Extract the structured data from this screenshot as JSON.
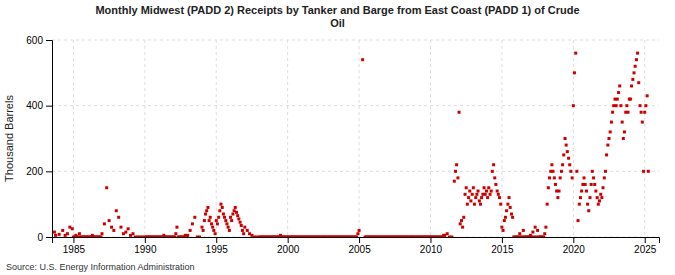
{
  "chart_data": {
    "type": "scatter",
    "title": "Monthly Midwest (PADD 2) Receipts by Tanker and Barge from East Coast (PADD 1) of Crude\nOil",
    "ylabel": "Thousand Barrels",
    "source": "Source: U.S. Energy Information Administration",
    "color": "#cc0000",
    "marker": "square",
    "grid": true,
    "xlim": [
      1983.5,
      2026.0
    ],
    "ylim": [
      0,
      600
    ],
    "xticks": [
      1985,
      1990,
      1995,
      2000,
      2005,
      2010,
      2015,
      2020,
      2025
    ],
    "yticks": [
      0,
      200,
      400,
      600
    ],
    "x": [
      1983.67,
      1983.75,
      1984.0,
      1984.25,
      1984.42,
      1984.58,
      1984.75,
      1984.92,
      1985.0,
      1985.08,
      1985.17,
      1985.25,
      1985.33,
      1985.42,
      1985.5,
      1985.58,
      1985.67,
      1985.75,
      1985.83,
      1985.92,
      1986.0,
      1986.08,
      1986.17,
      1986.25,
      1986.33,
      1986.42,
      1986.5,
      1986.58,
      1986.67,
      1986.75,
      1986.83,
      1986.92,
      1987.0,
      1987.17,
      1987.33,
      1987.5,
      1987.67,
      1987.83,
      1988.0,
      1988.17,
      1988.33,
      1988.5,
      1988.67,
      1988.83,
      1989.0,
      1989.17,
      1989.33,
      1989.5,
      1989.67,
      1989.83,
      1990.0,
      1990.08,
      1990.17,
      1990.25,
      1990.33,
      1990.42,
      1990.5,
      1990.58,
      1990.67,
      1990.75,
      1990.83,
      1990.92,
      1991.0,
      1991.08,
      1991.17,
      1991.25,
      1991.33,
      1991.42,
      1991.5,
      1991.58,
      1991.67,
      1991.75,
      1991.83,
      1991.92,
      1992.0,
      1992.08,
      1992.17,
      1992.25,
      1992.33,
      1992.42,
      1992.5,
      1992.58,
      1992.67,
      1992.75,
      1992.83,
      1992.92,
      1993.0,
      1993.17,
      1993.33,
      1993.5,
      1993.67,
      1993.83,
      1994.0,
      1994.08,
      1994.17,
      1994.25,
      1994.33,
      1994.42,
      1994.5,
      1994.58,
      1994.67,
      1994.75,
      1994.83,
      1994.92,
      1995.0,
      1995.08,
      1995.17,
      1995.25,
      1995.33,
      1995.42,
      1995.5,
      1995.58,
      1995.67,
      1995.75,
      1995.83,
      1995.92,
      1996.0,
      1996.08,
      1996.17,
      1996.25,
      1996.33,
      1996.42,
      1996.5,
      1996.58,
      1996.67,
      1996.75,
      1996.83,
      1996.92,
      1997.0,
      1997.17,
      1997.33,
      1997.5,
      1997.67,
      1997.83,
      1998.0,
      1998.08,
      1998.17,
      1998.25,
      1998.33,
      1998.42,
      1998.5,
      1998.58,
      1998.67,
      1998.75,
      1998.83,
      1998.92,
      1999.0,
      1999.08,
      1999.17,
      1999.25,
      1999.33,
      1999.42,
      1999.5,
      1999.58,
      1999.67,
      1999.75,
      1999.83,
      1999.92,
      2000.0,
      2000.08,
      2000.17,
      2000.25,
      2000.33,
      2000.42,
      2000.5,
      2000.58,
      2000.67,
      2000.75,
      2000.83,
      2000.92,
      2001.0,
      2001.08,
      2001.17,
      2001.25,
      2001.33,
      2001.42,
      2001.5,
      2001.58,
      2001.67,
      2001.75,
      2001.83,
      2001.92,
      2002.0,
      2002.08,
      2002.17,
      2002.25,
      2002.33,
      2002.42,
      2002.5,
      2002.58,
      2002.67,
      2002.75,
      2002.83,
      2002.92,
      2003.0,
      2003.08,
      2003.17,
      2003.25,
      2003.33,
      2003.42,
      2003.5,
      2003.58,
      2003.67,
      2003.75,
      2003.83,
      2003.92,
      2004.0,
      2004.08,
      2004.17,
      2004.25,
      2004.33,
      2004.42,
      2004.5,
      2004.58,
      2004.67,
      2004.75,
      2004.83,
      2004.92,
      2005.0,
      2005.25,
      2005.42,
      2005.5,
      2005.58,
      2005.67,
      2005.75,
      2005.83,
      2005.92,
      2006.0,
      2006.08,
      2006.17,
      2006.25,
      2006.33,
      2006.42,
      2006.5,
      2006.58,
      2006.67,
      2006.75,
      2006.83,
      2006.92,
      2007.0,
      2007.08,
      2007.17,
      2007.25,
      2007.33,
      2007.42,
      2007.5,
      2007.58,
      2007.67,
      2007.75,
      2007.83,
      2007.92,
      2008.0,
      2008.08,
      2008.17,
      2008.25,
      2008.33,
      2008.42,
      2008.5,
      2008.58,
      2008.67,
      2008.75,
      2008.83,
      2008.92,
      2009.0,
      2009.08,
      2009.17,
      2009.25,
      2009.33,
      2009.42,
      2009.5,
      2009.58,
      2009.67,
      2009.75,
      2009.83,
      2009.92,
      2010.0,
      2010.08,
      2010.17,
      2010.25,
      2010.33,
      2010.42,
      2010.5,
      2010.58,
      2010.67,
      2010.75,
      2010.83,
      2010.92,
      2011.0,
      2011.17,
      2011.33,
      2011.5,
      2011.67,
      2011.75,
      2011.83,
      2011.92,
      2012.0,
      2012.08,
      2012.17,
      2012.25,
      2012.33,
      2012.42,
      2012.5,
      2012.58,
      2012.67,
      2012.75,
      2012.83,
      2012.92,
      2013.0,
      2013.08,
      2013.17,
      2013.25,
      2013.33,
      2013.42,
      2013.5,
      2013.58,
      2013.67,
      2013.75,
      2013.83,
      2013.92,
      2014.0,
      2014.08,
      2014.17,
      2014.25,
      2014.33,
      2014.42,
      2014.5,
      2014.58,
      2014.67,
      2014.75,
      2014.83,
      2014.92,
      2015.0,
      2015.08,
      2015.17,
      2015.25,
      2015.33,
      2015.42,
      2015.5,
      2015.58,
      2015.67,
      2015.75,
      2015.83,
      2015.92,
      2016.0,
      2016.08,
      2016.17,
      2016.25,
      2016.33,
      2016.42,
      2016.5,
      2016.58,
      2016.67,
      2016.75,
      2016.83,
      2016.92,
      2017.0,
      2017.08,
      2017.17,
      2017.25,
      2017.33,
      2017.42,
      2017.5,
      2017.58,
      2017.67,
      2017.75,
      2017.83,
      2017.92,
      2018.0,
      2018.08,
      2018.17,
      2018.25,
      2018.33,
      2018.42,
      2018.5,
      2018.58,
      2018.67,
      2018.75,
      2018.83,
      2018.92,
      2019.0,
      2019.08,
      2019.17,
      2019.25,
      2019.33,
      2019.42,
      2019.5,
      2019.58,
      2019.67,
      2019.75,
      2019.83,
      2019.92,
      2020.0,
      2020.08,
      2020.17,
      2020.25,
      2020.33,
      2020.42,
      2020.5,
      2020.58,
      2020.67,
      2020.75,
      2020.83,
      2020.92,
      2021.0,
      2021.08,
      2021.17,
      2021.25,
      2021.33,
      2021.42,
      2021.5,
      2021.58,
      2021.67,
      2021.75,
      2021.83,
      2021.92,
      2022.0,
      2022.08,
      2022.17,
      2022.25,
      2022.33,
      2022.42,
      2022.5,
      2022.58,
      2022.67,
      2022.75,
      2022.83,
      2022.92,
      2023.0,
      2023.08,
      2023.17,
      2023.25,
      2023.33,
      2023.42,
      2023.5,
      2023.58,
      2023.67,
      2023.75,
      2023.83,
      2023.92,
      2024.0,
      2024.08,
      2024.17,
      2024.25,
      2024.33,
      2024.42,
      2024.5,
      2024.58,
      2024.67,
      2024.75,
      2024.83,
      2024.92,
      2025.0,
      2025.08,
      2025.17,
      2025.25
    ],
    "values": [
      15,
      5,
      8,
      20,
      5,
      10,
      30,
      25,
      0,
      0,
      5,
      0,
      0,
      10,
      0,
      0,
      0,
      0,
      0,
      0,
      0,
      0,
      0,
      0,
      5,
      0,
      0,
      0,
      0,
      0,
      0,
      0,
      10,
      40,
      150,
      50,
      30,
      20,
      80,
      60,
      30,
      10,
      15,
      25,
      5,
      10,
      0,
      0,
      0,
      0,
      0,
      0,
      0,
      0,
      0,
      0,
      0,
      0,
      0,
      0,
      0,
      0,
      0,
      0,
      0,
      0,
      5,
      0,
      0,
      0,
      0,
      0,
      0,
      0,
      0,
      0,
      10,
      30,
      0,
      0,
      0,
      0,
      0,
      0,
      5,
      0,
      5,
      20,
      40,
      60,
      0,
      0,
      30,
      20,
      50,
      70,
      80,
      90,
      50,
      60,
      40,
      30,
      20,
      10,
      50,
      40,
      60,
      80,
      100,
      90,
      70,
      60,
      50,
      40,
      30,
      20,
      60,
      50,
      70,
      80,
      90,
      75,
      65,
      55,
      45,
      35,
      20,
      10,
      30,
      20,
      10,
      5,
      0,
      0,
      0,
      0,
      0,
      0,
      0,
      0,
      0,
      0,
      0,
      0,
      0,
      0,
      0,
      0,
      0,
      0,
      0,
      0,
      5,
      0,
      0,
      0,
      0,
      0,
      0,
      0,
      0,
      0,
      0,
      0,
      0,
      0,
      0,
      0,
      0,
      0,
      0,
      0,
      0,
      0,
      0,
      0,
      0,
      0,
      0,
      0,
      0,
      0,
      0,
      0,
      0,
      0,
      0,
      0,
      0,
      0,
      0,
      0,
      0,
      0,
      0,
      0,
      0,
      0,
      0,
      0,
      0,
      0,
      0,
      0,
      0,
      0,
      0,
      0,
      0,
      0,
      0,
      0,
      0,
      0,
      0,
      0,
      0,
      10,
      20,
      540,
      0,
      0,
      0,
      0,
      0,
      0,
      0,
      0,
      0,
      0,
      0,
      0,
      0,
      0,
      0,
      0,
      0,
      0,
      0,
      0,
      0,
      0,
      0,
      0,
      0,
      0,
      0,
      0,
      0,
      0,
      0,
      0,
      0,
      0,
      0,
      0,
      0,
      0,
      0,
      0,
      0,
      0,
      0,
      0,
      0,
      0,
      0,
      0,
      0,
      0,
      0,
      0,
      0,
      0,
      0,
      0,
      0,
      0,
      0,
      0,
      0,
      0,
      0,
      0,
      0,
      0,
      5,
      5,
      10,
      0,
      0,
      170,
      200,
      220,
      180,
      380,
      40,
      50,
      30,
      60,
      130,
      150,
      100,
      120,
      140,
      110,
      130,
      150,
      100,
      120,
      130,
      140,
      110,
      100,
      120,
      130,
      150,
      130,
      140,
      120,
      150,
      130,
      140,
      200,
      220,
      180,
      160,
      140,
      130,
      120,
      100,
      30,
      20,
      50,
      60,
      80,
      100,
      120,
      90,
      70,
      60,
      0,
      0,
      0,
      0,
      0,
      10,
      0,
      0,
      20,
      0,
      0,
      0,
      0,
      0,
      5,
      0,
      15,
      0,
      30,
      0,
      20,
      0,
      0,
      0,
      0,
      0,
      10,
      30,
      100,
      150,
      180,
      200,
      220,
      200,
      180,
      160,
      140,
      120,
      140,
      180,
      200,
      220,
      250,
      300,
      280,
      260,
      240,
      220,
      200,
      180,
      400,
      500,
      560,
      200,
      50,
      100,
      120,
      140,
      160,
      180,
      160,
      140,
      100,
      80,
      120,
      160,
      200,
      180,
      160,
      140,
      120,
      100,
      110,
      130,
      120,
      150,
      180,
      200,
      250,
      280,
      300,
      320,
      350,
      380,
      400,
      420,
      400,
      420,
      440,
      460,
      400,
      350,
      300,
      320,
      380,
      400,
      380,
      420,
      420,
      460,
      480,
      500,
      520,
      540,
      560,
      470,
      400,
      380,
      350,
      200,
      380,
      400,
      430,
      200
    ]
  }
}
